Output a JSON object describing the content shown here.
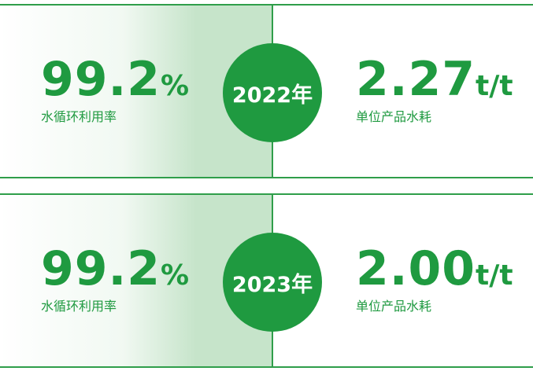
{
  "panels": [
    {
      "year": "2022年",
      "left": {
        "value": "99.2",
        "unit": "%",
        "label": "水循环利用率"
      },
      "right": {
        "value": "2.27",
        "unit": "t/t",
        "label": "单位产品水耗"
      }
    },
    {
      "year": "2023年",
      "left": {
        "value": "99.2",
        "unit": "%",
        "label": "水循环利用率"
      },
      "right": {
        "value": "2.00",
        "unit": "t/t",
        "label": "单位产品水耗"
      }
    }
  ]
}
